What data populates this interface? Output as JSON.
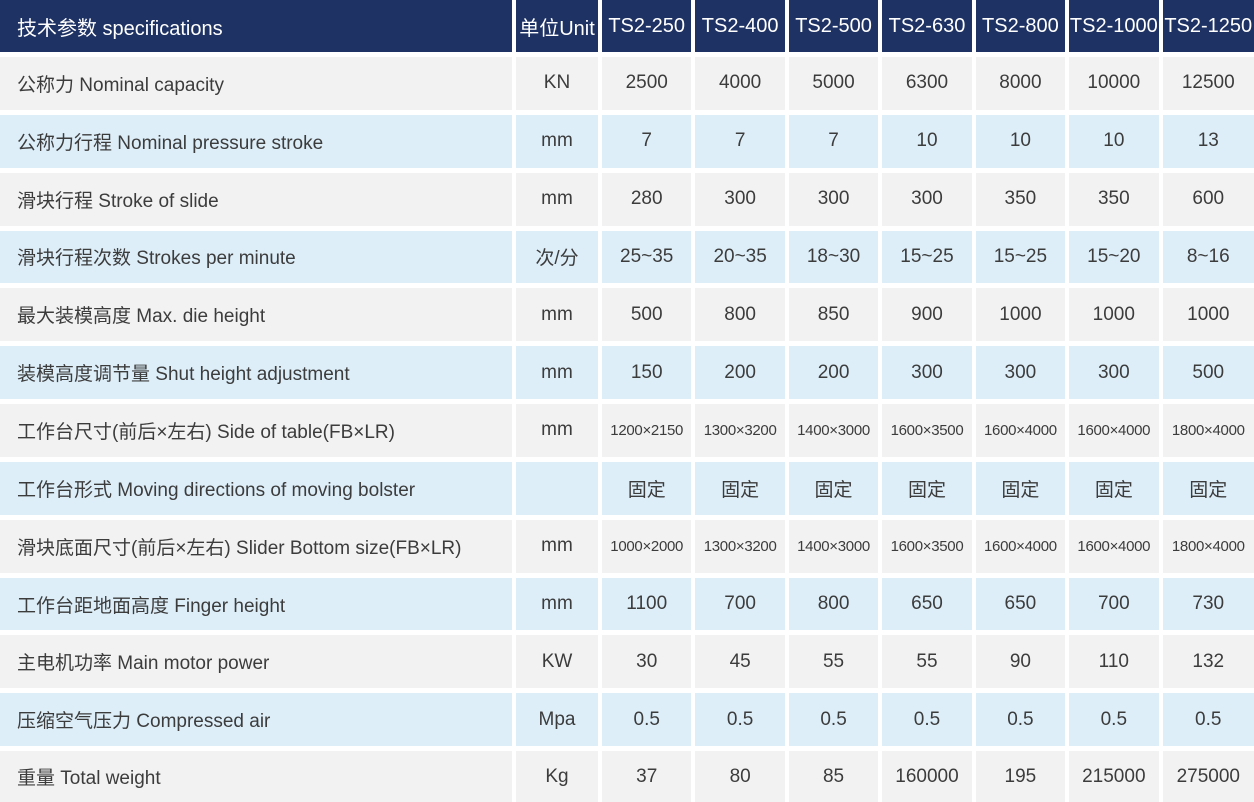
{
  "table": {
    "header": {
      "title": "技术参数  specifications",
      "unit_label": "单位Unit",
      "models": [
        "TS2-250",
        "TS2-400",
        "TS2-500",
        "TS2-630",
        "TS2-800",
        "TS2-1000",
        "TS2-1250"
      ]
    },
    "rows": [
      {
        "label": "公称力  Nominal capacity",
        "unit": "KN",
        "values": [
          "2500",
          "4000",
          "5000",
          "6300",
          "8000",
          "10000",
          "12500"
        ]
      },
      {
        "label": "公称力行程  Nominal  pressure stroke",
        "unit": "mm",
        "values": [
          "7",
          "7",
          "7",
          "10",
          "10",
          "10",
          "13"
        ]
      },
      {
        "label": "滑块行程  Stroke of slide",
        "unit": "mm",
        "values": [
          "280",
          "300",
          "300",
          "300",
          "350",
          "350",
          "600"
        ]
      },
      {
        "label": "滑块行程次数 Strokes per minute",
        "unit": "次/分",
        "values": [
          "25~35",
          "20~35",
          "18~30",
          "15~25",
          "15~25",
          "15~20",
          "8~16"
        ]
      },
      {
        "label": "最大装模高度  Max. die height",
        "unit": "mm",
        "values": [
          "500",
          "800",
          "850",
          "900",
          "1000",
          "1000",
          "1000"
        ]
      },
      {
        "label": "装模高度调节量  Shut height adjustment",
        "unit": "mm",
        "values": [
          "150",
          "200",
          "200",
          "300",
          "300",
          "300",
          "500"
        ]
      },
      {
        "label": "工作台尺寸(前后×左右) Side of table(FB×LR)",
        "unit": "mm",
        "values": [
          "1200×2150",
          "1300×3200",
          "1400×3000",
          "1600×3500",
          "1600×4000",
          "1600×4000",
          "1800×4000"
        ],
        "small": true
      },
      {
        "label": "工作台形式  Moving directions of moving bolster",
        "unit": "",
        "values": [
          "固定",
          "固定",
          "固定",
          "固定",
          "固定",
          "固定",
          "固定"
        ]
      },
      {
        "label": "滑块底面尺寸(前后×左右) Slider Bottom size(FB×LR)",
        "unit": "mm",
        "values": [
          "1000×2000",
          "1300×3200",
          "1400×3000",
          "1600×3500",
          "1600×4000",
          "1600×4000",
          "1800×4000"
        ],
        "small": true
      },
      {
        "label": "工作台距地面高度  Finger height",
        "unit": "mm",
        "values": [
          "1100",
          "700",
          "800",
          "650",
          "650",
          "700",
          "730"
        ]
      },
      {
        "label": "主电机功率  Main motor power",
        "unit": "KW",
        "values": [
          "30",
          "45",
          "55",
          "55",
          "90",
          "110",
          "132"
        ]
      },
      {
        "label": "压缩空气压力 Compressed air",
        "unit": "Mpa",
        "values": [
          "0.5",
          "0.5",
          "0.5",
          "0.5",
          "0.5",
          "0.5",
          "0.5"
        ]
      },
      {
        "label": "重量  Total weight",
        "unit": "Kg",
        "values": [
          "37",
          "80",
          "85",
          "160000",
          "195",
          "215000",
          "275000"
        ]
      }
    ],
    "colors": {
      "header_bg": "#1e3264",
      "header_text": "#ffffff",
      "row_gray": "#f2f2f2",
      "row_blue": "#ddeef9",
      "cell_text": "#3c3c3c",
      "gap": "#ffffff"
    }
  }
}
